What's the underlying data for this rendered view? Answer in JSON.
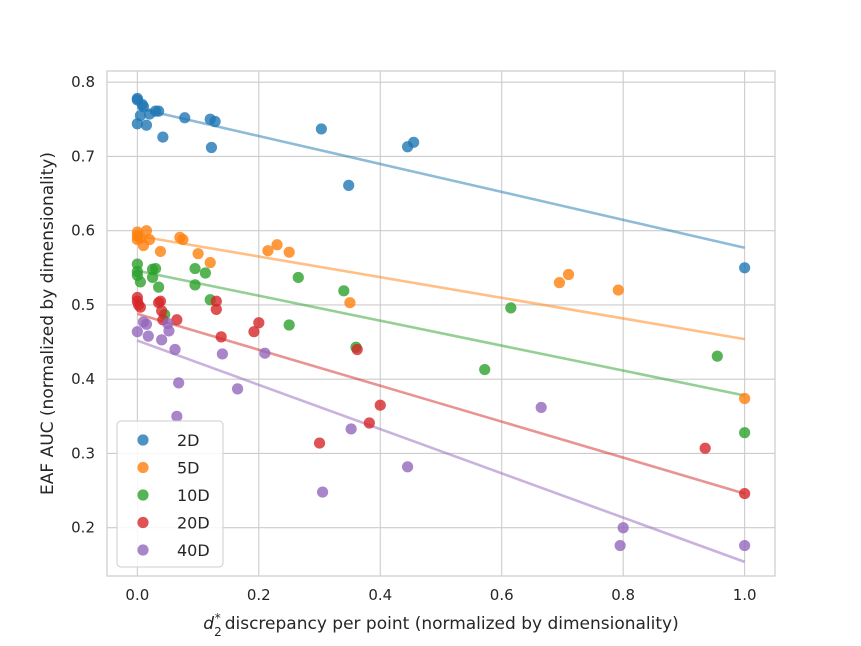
{
  "chart_data": {
    "type": "scatter",
    "xlabel_prefix": "d",
    "xlabel_sub": "2",
    "xlabel_sup": "*",
    "xlabel_rest": "discrepancy per point (normalized by dimensionality)",
    "ylabel": "EAF AUC (normalized by dimensionality)",
    "xlim": [
      -0.05,
      1.05
    ],
    "ylim": [
      0.135,
      0.815
    ],
    "xticks": [
      0.0,
      0.2,
      0.4,
      0.6,
      0.8,
      1.0
    ],
    "xtick_labels": [
      "0.0",
      "0.2",
      "0.4",
      "0.6",
      "0.8",
      "1.0"
    ],
    "yticks": [
      0.2,
      0.3,
      0.4,
      0.5,
      0.6,
      0.7,
      0.8
    ],
    "ytick_labels": [
      "0.2",
      "0.3",
      "0.4",
      "0.5",
      "0.6",
      "0.7",
      "0.8"
    ],
    "grid": true,
    "legend_position": "bottom-left",
    "series": [
      {
        "name": "2D",
        "color": "#1f77b4",
        "fit": [
          [
            0.0,
            0.765
          ],
          [
            1.0,
            0.577
          ]
        ],
        "points": [
          [
            0.0,
            0.778
          ],
          [
            0.0,
            0.776
          ],
          [
            0.0,
            0.744
          ],
          [
            0.005,
            0.755
          ],
          [
            0.008,
            0.77
          ],
          [
            0.01,
            0.767
          ],
          [
            0.015,
            0.742
          ],
          [
            0.02,
            0.757
          ],
          [
            0.03,
            0.761
          ],
          [
            0.035,
            0.761
          ],
          [
            0.042,
            0.726
          ],
          [
            0.078,
            0.752
          ],
          [
            0.12,
            0.75
          ],
          [
            0.128,
            0.747
          ],
          [
            0.122,
            0.712
          ],
          [
            0.303,
            0.737
          ],
          [
            0.348,
            0.661
          ],
          [
            0.445,
            0.713
          ],
          [
            0.455,
            0.719
          ],
          [
            1.0,
            0.55
          ]
        ]
      },
      {
        "name": "5D",
        "color": "#ff7f0e",
        "fit": [
          [
            0.0,
            0.593
          ],
          [
            1.0,
            0.454
          ]
        ],
        "points": [
          [
            0.0,
            0.598
          ],
          [
            0.0,
            0.593
          ],
          [
            0.0,
            0.588
          ],
          [
            0.005,
            0.59
          ],
          [
            0.01,
            0.58
          ],
          [
            0.015,
            0.6
          ],
          [
            0.02,
            0.588
          ],
          [
            0.038,
            0.572
          ],
          [
            0.07,
            0.591
          ],
          [
            0.075,
            0.588
          ],
          [
            0.1,
            0.569
          ],
          [
            0.12,
            0.557
          ],
          [
            0.215,
            0.573
          ],
          [
            0.23,
            0.581
          ],
          [
            0.25,
            0.571
          ],
          [
            0.35,
            0.503
          ],
          [
            0.695,
            0.53
          ],
          [
            0.71,
            0.541
          ],
          [
            0.792,
            0.52
          ],
          [
            1.0,
            0.374
          ]
        ]
      },
      {
        "name": "10D",
        "color": "#2ca02c",
        "fit": [
          [
            0.0,
            0.546
          ],
          [
            1.0,
            0.378
          ]
        ],
        "points": [
          [
            0.0,
            0.555
          ],
          [
            0.0,
            0.545
          ],
          [
            0.0,
            0.54
          ],
          [
            0.005,
            0.531
          ],
          [
            0.025,
            0.548
          ],
          [
            0.025,
            0.537
          ],
          [
            0.03,
            0.549
          ],
          [
            0.035,
            0.524
          ],
          [
            0.045,
            0.487
          ],
          [
            0.095,
            0.549
          ],
          [
            0.095,
            0.527
          ],
          [
            0.112,
            0.543
          ],
          [
            0.12,
            0.507
          ],
          [
            0.25,
            0.473
          ],
          [
            0.265,
            0.537
          ],
          [
            0.34,
            0.519
          ],
          [
            0.36,
            0.443
          ],
          [
            0.572,
            0.413
          ],
          [
            0.615,
            0.496
          ],
          [
            0.955,
            0.431
          ],
          [
            1.0,
            0.328
          ]
        ]
      },
      {
        "name": "20D",
        "color": "#d62728",
        "fit": [
          [
            0.0,
            0.488
          ],
          [
            1.0,
            0.246
          ]
        ],
        "points": [
          [
            0.0,
            0.51
          ],
          [
            0.0,
            0.505
          ],
          [
            0.002,
            0.5
          ],
          [
            0.005,
            0.497
          ],
          [
            0.035,
            0.503
          ],
          [
            0.038,
            0.505
          ],
          [
            0.04,
            0.492
          ],
          [
            0.042,
            0.48
          ],
          [
            0.065,
            0.48
          ],
          [
            0.13,
            0.505
          ],
          [
            0.13,
            0.494
          ],
          [
            0.138,
            0.457
          ],
          [
            0.192,
            0.464
          ],
          [
            0.2,
            0.476
          ],
          [
            0.3,
            0.314
          ],
          [
            0.362,
            0.44
          ],
          [
            0.382,
            0.341
          ],
          [
            0.4,
            0.365
          ],
          [
            0.935,
            0.307
          ],
          [
            1.0,
            0.246
          ]
        ]
      },
      {
        "name": "40D",
        "color": "#9467bd",
        "fit": [
          [
            0.0,
            0.452
          ],
          [
            1.0,
            0.154
          ]
        ],
        "points": [
          [
            0.0,
            0.464
          ],
          [
            0.01,
            0.477
          ],
          [
            0.015,
            0.474
          ],
          [
            0.018,
            0.458
          ],
          [
            0.04,
            0.453
          ],
          [
            0.05,
            0.475
          ],
          [
            0.052,
            0.465
          ],
          [
            0.062,
            0.44
          ],
          [
            0.065,
            0.35
          ],
          [
            0.068,
            0.395
          ],
          [
            0.14,
            0.434
          ],
          [
            0.165,
            0.387
          ],
          [
            0.21,
            0.435
          ],
          [
            0.305,
            0.248
          ],
          [
            0.352,
            0.333
          ],
          [
            0.445,
            0.282
          ],
          [
            0.665,
            0.362
          ],
          [
            0.795,
            0.176
          ],
          [
            0.8,
            0.2
          ],
          [
            1.0,
            0.176
          ]
        ]
      }
    ]
  }
}
